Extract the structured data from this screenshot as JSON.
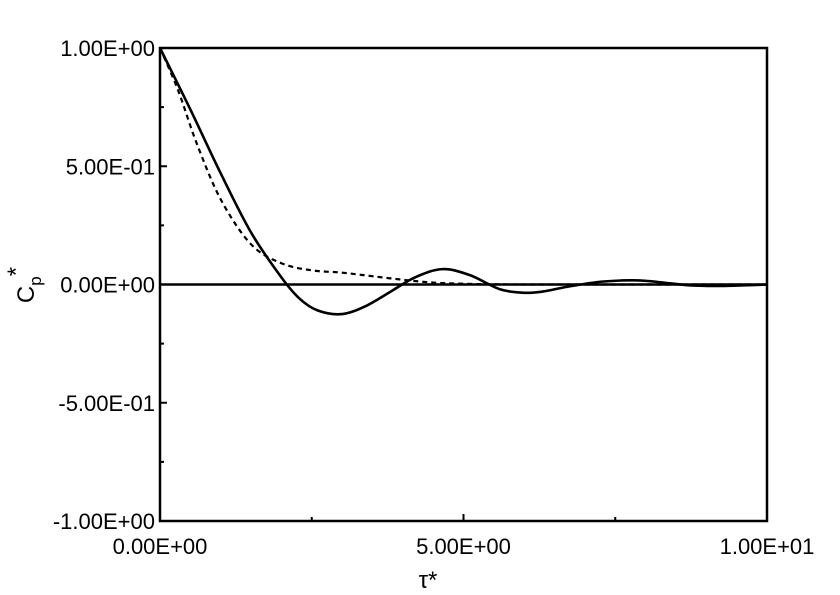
{
  "chart_data": {
    "type": "line",
    "xlabel": "τ*",
    "ylabel_main": "C",
    "ylabel_sub": "p",
    "ylabel_sup": "*",
    "xlim": [
      0,
      10
    ],
    "ylim": [
      -1,
      1
    ],
    "x_ticks": [
      {
        "value": 0,
        "label": "0.00E+00"
      },
      {
        "value": 5,
        "label": "5.00E+00"
      },
      {
        "value": 10,
        "label": "1.00E+01"
      }
    ],
    "y_ticks": [
      {
        "value": 1,
        "label": "1.00E+00"
      },
      {
        "value": 0.5,
        "label": "5.00E-01"
      },
      {
        "value": 0,
        "label": "0.00E+00"
      },
      {
        "value": -0.5,
        "label": "-5.00E-01"
      },
      {
        "value": -1,
        "label": "-1.00E+00"
      }
    ],
    "zero_line": 0,
    "grid": false,
    "legend": false,
    "series": [
      {
        "style": "solid",
        "x": [
          0,
          0.5,
          1.0,
          1.5,
          2.0,
          2.3,
          2.6,
          3.0,
          3.4,
          3.8,
          4.2,
          4.65,
          5.1,
          5.6,
          6.0,
          6.3,
          6.7,
          7.2,
          7.6,
          7.9,
          8.3,
          8.7,
          9.0,
          9.3,
          9.7,
          10.0
        ],
        "y": [
          1.0,
          0.74,
          0.47,
          0.22,
          0.03,
          -0.06,
          -0.11,
          -0.125,
          -0.09,
          -0.03,
          0.03,
          0.065,
          0.04,
          -0.02,
          -0.035,
          -0.03,
          -0.01,
          0.01,
          0.017,
          0.017,
          0.008,
          -0.003,
          -0.006,
          -0.006,
          -0.003,
          0.0
        ]
      },
      {
        "style": "dashed",
        "x": [
          0,
          0.3,
          0.6,
          1.0,
          1.5,
          2.0,
          2.5,
          3.0,
          3.5,
          4.0,
          4.5,
          5.0,
          5.5,
          6.0,
          7.0,
          8.0,
          9.0,
          10.0
        ],
        "y": [
          1.0,
          0.82,
          0.6,
          0.36,
          0.17,
          0.09,
          0.06,
          0.05,
          0.035,
          0.02,
          0.008,
          0.003,
          0.001,
          0.0,
          0.0,
          0.0,
          0.0,
          0.0
        ]
      }
    ]
  }
}
